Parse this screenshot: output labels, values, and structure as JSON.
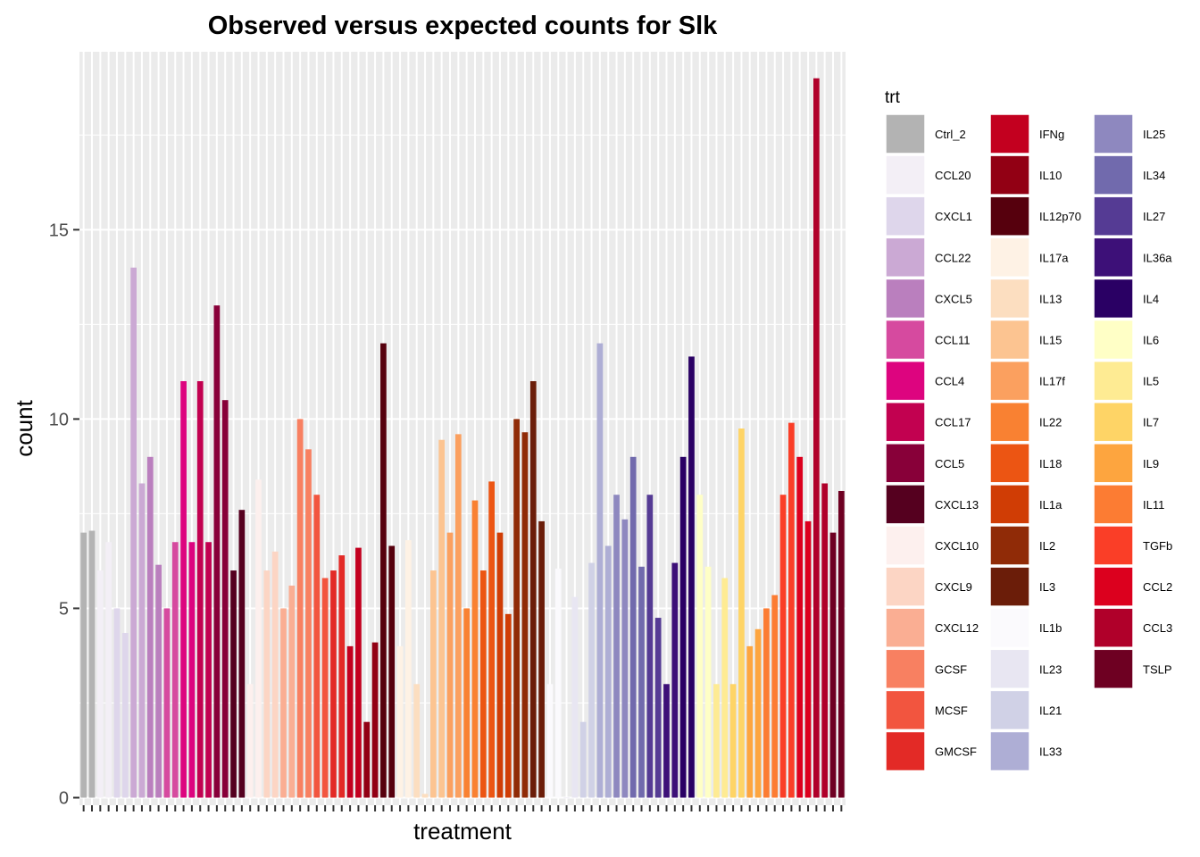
{
  "chart_data": {
    "type": "bar",
    "title": "Observed versus expected counts for Slk",
    "xlabel": "treatment",
    "ylabel": "count",
    "ylim": [
      -0.2,
      19.7
    ],
    "yticks": [
      0,
      5,
      10,
      15
    ],
    "grid": true,
    "legend": {
      "title": "trt",
      "placement": "right"
    },
    "bar_count": 92,
    "treatments": [
      {
        "name": "Ctrl_2",
        "color": "#B3B3B3"
      },
      {
        "name": "CCL20",
        "color": "#F3EFF6"
      },
      {
        "name": "CXCL1",
        "color": "#DED6EB"
      },
      {
        "name": "CCL22",
        "color": "#CBA9D4"
      },
      {
        "name": "CXCL5",
        "color": "#BA7FBE"
      },
      {
        "name": "CCL11",
        "color": "#D64A9F"
      },
      {
        "name": "CCL4",
        "color": "#DD047F"
      },
      {
        "name": "CCL17",
        "color": "#C20150"
      },
      {
        "name": "CCL5",
        "color": "#880039"
      },
      {
        "name": "CXCL13",
        "color": "#55001F"
      },
      {
        "name": "CXCL10",
        "color": "#FDF0EE"
      },
      {
        "name": "CXCL9",
        "color": "#FCD5C4"
      },
      {
        "name": "CXCL12",
        "color": "#FAAE93"
      },
      {
        "name": "GCSF",
        "color": "#F88061"
      },
      {
        "name": "MCSF",
        "color": "#F2553F"
      },
      {
        "name": "GMCSF",
        "color": "#E32A26"
      },
      {
        "name": "IFNg",
        "color": "#C3001F"
      },
      {
        "name": "IL10",
        "color": "#920014"
      },
      {
        "name": "IL12p70",
        "color": "#56000D"
      },
      {
        "name": "IL17a",
        "color": "#FEF2E5"
      },
      {
        "name": "IL13",
        "color": "#FCDEC0"
      },
      {
        "name": "IL15",
        "color": "#FCC491"
      },
      {
        "name": "IL17f",
        "color": "#FBA05F"
      },
      {
        "name": "IL22",
        "color": "#F98132"
      },
      {
        "name": "IL18",
        "color": "#EC5513"
      },
      {
        "name": "IL1a",
        "color": "#D03D05"
      },
      {
        "name": "IL2",
        "color": "#902B07"
      },
      {
        "name": "IL3",
        "color": "#6B1D09"
      },
      {
        "name": "IL1b",
        "color": "#FBFAFD"
      },
      {
        "name": "IL23",
        "color": "#E8E6F2"
      },
      {
        "name": "IL21",
        "color": "#D0D1E6"
      },
      {
        "name": "IL33",
        "color": "#AEAED5"
      },
      {
        "name": "IL25",
        "color": "#8E88BF"
      },
      {
        "name": "IL34",
        "color": "#716AAD"
      },
      {
        "name": "IL27",
        "color": "#553B94"
      },
      {
        "name": "IL36a",
        "color": "#3D1078"
      },
      {
        "name": "IL4",
        "color": "#2A0064"
      },
      {
        "name": "IL6",
        "color": "#FFFFC6"
      },
      {
        "name": "IL5",
        "color": "#FEEB93"
      },
      {
        "name": "IL7",
        "color": "#FED466"
      },
      {
        "name": "IL9",
        "color": "#FDA53F"
      },
      {
        "name": "IL11",
        "color": "#FC7C33"
      },
      {
        "name": "TGFb",
        "color": "#FA3E27"
      },
      {
        "name": "CCL2",
        "color": "#DC001E"
      },
      {
        "name": "CCL3",
        "color": "#B0002A"
      },
      {
        "name": "TSLP",
        "color": "#6E0022"
      }
    ],
    "bars": [
      {
        "trt": "Ctrl_2",
        "value": 7.0
      },
      {
        "trt": "Ctrl_2",
        "value": 7.05
      },
      {
        "trt": "CCL20",
        "value": 6.0
      },
      {
        "trt": "CCL20",
        "value": 6.75
      },
      {
        "trt": "CXCL1",
        "value": 5.0
      },
      {
        "trt": "CXCL1",
        "value": 4.35
      },
      {
        "trt": "CCL22",
        "value": 14.0
      },
      {
        "trt": "CCL22",
        "value": 8.3
      },
      {
        "trt": "CXCL5",
        "value": 9.0
      },
      {
        "trt": "CXCL5",
        "value": 6.15
      },
      {
        "trt": "CCL11",
        "value": 5.0
      },
      {
        "trt": "CCL11",
        "value": 6.75
      },
      {
        "trt": "CCL4",
        "value": 11.0
      },
      {
        "trt": "CCL4",
        "value": 6.75
      },
      {
        "trt": "CCL17",
        "value": 11.0
      },
      {
        "trt": "CCL17",
        "value": 6.75
      },
      {
        "trt": "CCL5",
        "value": 13.0
      },
      {
        "trt": "CCL5",
        "value": 10.5
      },
      {
        "trt": "CXCL13",
        "value": 6.0
      },
      {
        "trt": "CXCL13",
        "value": 7.6
      },
      {
        "trt": "CXCL10",
        "value": 3.0
      },
      {
        "trt": "CXCL10",
        "value": 8.4
      },
      {
        "trt": "CXCL9",
        "value": 6.0
      },
      {
        "trt": "CXCL9",
        "value": 6.5
      },
      {
        "trt": "CXCL12",
        "value": 5.0
      },
      {
        "trt": "CXCL12",
        "value": 5.6
      },
      {
        "trt": "GCSF",
        "value": 10.0
      },
      {
        "trt": "GCSF",
        "value": 9.2
      },
      {
        "trt": "MCSF",
        "value": 8.0
      },
      {
        "trt": "MCSF",
        "value": 5.8
      },
      {
        "trt": "GMCSF",
        "value": 6.0
      },
      {
        "trt": "GMCSF",
        "value": 6.4
      },
      {
        "trt": "IFNg",
        "value": 4.0
      },
      {
        "trt": "IFNg",
        "value": 6.6
      },
      {
        "trt": "IL10",
        "value": 2.0
      },
      {
        "trt": "IL10",
        "value": 4.1
      },
      {
        "trt": "IL12p70",
        "value": 12.0
      },
      {
        "trt": "IL12p70",
        "value": 6.65
      },
      {
        "trt": "IL17a",
        "value": 4.0
      },
      {
        "trt": "IL17a",
        "value": 6.8
      },
      {
        "trt": "IL13",
        "value": 3.0
      },
      {
        "trt": "IL13",
        "value": 0.1
      },
      {
        "trt": "IL15",
        "value": 6.0
      },
      {
        "trt": "IL15",
        "value": 9.45
      },
      {
        "trt": "IL17f",
        "value": 7.0
      },
      {
        "trt": "IL17f",
        "value": 9.6
      },
      {
        "trt": "IL22",
        "value": 5.0
      },
      {
        "trt": "IL22",
        "value": 7.85
      },
      {
        "trt": "IL18",
        "value": 6.0
      },
      {
        "trt": "IL18",
        "value": 8.35
      },
      {
        "trt": "IL1a",
        "value": 7.0
      },
      {
        "trt": "IL1a",
        "value": 4.85
      },
      {
        "trt": "IL2",
        "value": 10.0
      },
      {
        "trt": "IL2",
        "value": 9.65
      },
      {
        "trt": "IL3",
        "value": 11.0
      },
      {
        "trt": "IL3",
        "value": 7.3
      },
      {
        "trt": "IL1b",
        "value": 3.0
      },
      {
        "trt": "IL1b",
        "value": 6.05
      },
      {
        "trt": "IL23",
        "value": 0.0
      },
      {
        "trt": "IL23",
        "value": 5.3
      },
      {
        "trt": "IL21",
        "value": 2.0
      },
      {
        "trt": "IL21",
        "value": 6.2
      },
      {
        "trt": "IL33",
        "value": 12.0
      },
      {
        "trt": "IL33",
        "value": 6.65
      },
      {
        "trt": "IL25",
        "value": 8.0
      },
      {
        "trt": "IL25",
        "value": 7.35
      },
      {
        "trt": "IL34",
        "value": 9.0
      },
      {
        "trt": "IL34",
        "value": 6.1
      },
      {
        "trt": "IL27",
        "value": 8.0
      },
      {
        "trt": "IL27",
        "value": 4.75
      },
      {
        "trt": "IL36a",
        "value": 3.0
      },
      {
        "trt": "IL36a",
        "value": 6.2
      },
      {
        "trt": "IL4",
        "value": 9.0
      },
      {
        "trt": "IL4",
        "value": 11.65
      },
      {
        "trt": "IL6",
        "value": 8.0
      },
      {
        "trt": "IL6",
        "value": 6.1
      },
      {
        "trt": "IL5",
        "value": 3.0
      },
      {
        "trt": "IL5",
        "value": 5.8
      },
      {
        "trt": "IL7",
        "value": 3.0
      },
      {
        "trt": "IL7",
        "value": 9.75
      },
      {
        "trt": "IL9",
        "value": 4.0
      },
      {
        "trt": "IL9",
        "value": 4.45
      },
      {
        "trt": "IL11",
        "value": 5.0
      },
      {
        "trt": "IL11",
        "value": 5.35
      },
      {
        "trt": "TGFb",
        "value": 8.0
      },
      {
        "trt": "TGFb",
        "value": 9.9
      },
      {
        "trt": "CCL2",
        "value": 9.0
      },
      {
        "trt": "CCL2",
        "value": 7.3
      },
      {
        "trt": "CCL3",
        "value": 19.0
      },
      {
        "trt": "CCL3",
        "value": 8.3
      },
      {
        "trt": "TSLP",
        "value": 7.0
      },
      {
        "trt": "TSLP",
        "value": 8.1
      }
    ]
  }
}
